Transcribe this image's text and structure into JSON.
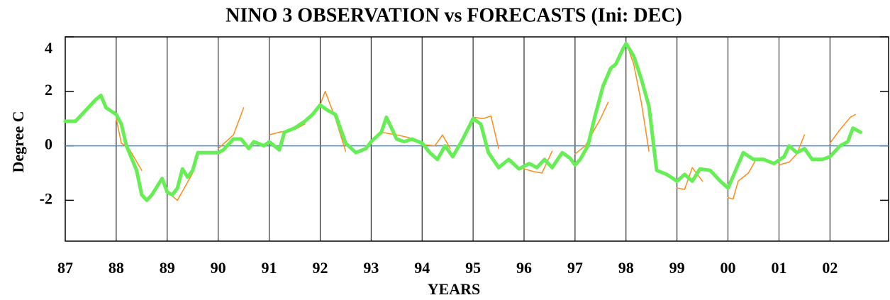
{
  "chart_data": {
    "type": "line",
    "title": "NINO 3 OBSERVATION vs FORECASTS (Ini: DEC)",
    "x_label": "YEARS",
    "y_label": "Degree C",
    "xlim": [
      1987,
      2003.15
    ],
    "ylim": [
      -3.5,
      4
    ],
    "xticks": [
      {
        "value": 1987,
        "label": "87"
      },
      {
        "value": 1988,
        "label": "88"
      },
      {
        "value": 1989,
        "label": "89"
      },
      {
        "value": 1990,
        "label": "90"
      },
      {
        "value": 1991,
        "label": "91"
      },
      {
        "value": 1992,
        "label": "92"
      },
      {
        "value": 1993,
        "label": "93"
      },
      {
        "value": 1994,
        "label": "94"
      },
      {
        "value": 1995,
        "label": "95"
      },
      {
        "value": 1996,
        "label": "96"
      },
      {
        "value": 1997,
        "label": "97"
      },
      {
        "value": 1998,
        "label": "98"
      },
      {
        "value": 1999,
        "label": "99"
      },
      {
        "value": 2000,
        "label": "00"
      },
      {
        "value": 2001,
        "label": "01"
      },
      {
        "value": 2002,
        "label": "02"
      }
    ],
    "yticks": [
      -2,
      0,
      2,
      4
    ],
    "grid": true,
    "baseline": 0,
    "baseline_color": "#3a8ee6",
    "series": [
      {
        "color": "#66ee55",
        "x": [
          1987.0,
          1987.2,
          1987.4,
          1987.6,
          1987.7,
          1987.8,
          1988.0,
          1988.1,
          1988.2,
          1988.4,
          1988.5,
          1988.6,
          1988.7,
          1988.9,
          1989.0,
          1989.1,
          1989.2,
          1989.3,
          1989.4,
          1989.5,
          1989.6,
          1989.8,
          1990.0,
          1990.1,
          1990.3,
          1990.45,
          1990.6,
          1990.7,
          1990.9,
          1991.0,
          1991.2,
          1991.3,
          1991.5,
          1991.7,
          1991.85,
          1992.0,
          1992.15,
          1992.3,
          1992.5,
          1992.7,
          1992.9,
          1993.0,
          1993.2,
          1993.3,
          1993.5,
          1993.65,
          1993.8,
          1994.0,
          1994.15,
          1994.3,
          1994.45,
          1994.6,
          1994.8,
          1995.0,
          1995.15,
          1995.3,
          1995.5,
          1995.7,
          1995.9,
          1996.1,
          1996.25,
          1996.4,
          1996.55,
          1996.75,
          1996.9,
          1997.0,
          1997.1,
          1997.25,
          1997.4,
          1997.55,
          1997.7,
          1997.8,
          1997.95,
          1998.0,
          1998.15,
          1998.3,
          1998.45,
          1998.6,
          1998.8,
          1999.0,
          1999.15,
          1999.3,
          1999.45,
          1999.65,
          1999.85,
          2000.0,
          2000.15,
          2000.3,
          2000.5,
          2000.7,
          2000.9,
          2001.1,
          2001.2,
          2001.35,
          2001.5,
          2001.65,
          2001.85,
          2002.0,
          2002.2,
          2002.35,
          2002.45,
          2002.6
        ],
        "values": [
          0.9,
          0.9,
          1.3,
          1.7,
          1.85,
          1.4,
          1.15,
          0.8,
          0,
          -0.9,
          -1.8,
          -2.0,
          -1.8,
          -1.2,
          -1.7,
          -1.8,
          -1.55,
          -0.85,
          -1.15,
          -0.9,
          -0.25,
          -0.25,
          -0.25,
          -0.15,
          0.25,
          0.25,
          -0.1,
          0.15,
          0,
          0.15,
          -0.15,
          0.5,
          0.65,
          0.9,
          1.15,
          1.5,
          1.3,
          1.15,
          0.1,
          -0.25,
          -0.1,
          0.15,
          0.5,
          1.05,
          0.25,
          0.15,
          0.25,
          0.1,
          -0.25,
          -0.5,
          0,
          -0.4,
          0.25,
          1.0,
          0.8,
          -0.25,
          -0.8,
          -0.5,
          -0.85,
          -0.65,
          -0.8,
          -0.5,
          -0.8,
          -0.25,
          -0.45,
          -0.7,
          -0.5,
          0,
          1.15,
          2.2,
          2.85,
          3.0,
          3.6,
          3.75,
          3.3,
          2.45,
          1.45,
          -0.9,
          -1.05,
          -1.3,
          -1.05,
          -1.3,
          -0.85,
          -0.9,
          -1.3,
          -1.55,
          -0.9,
          -0.25,
          -0.5,
          -0.5,
          -0.65,
          -0.4,
          0,
          -0.25,
          -0.1,
          -0.5,
          -0.5,
          -0.4,
          0,
          0.15,
          0.65,
          0.5
        ]
      },
      {
        "color": "#ff8c1a",
        "x": [
          1988.0,
          1988.1,
          1988.25,
          1988.5
        ],
        "values": [
          1.0,
          0.1,
          -0.1,
          -0.9
        ]
      },
      {
        "color": "#ff8c1a",
        "x": [
          1989.0,
          1989.2,
          1989.5
        ],
        "values": [
          -1.7,
          -2.0,
          -1.0
        ]
      },
      {
        "color": "#ff8c1a",
        "x": [
          1990.0,
          1990.3,
          1990.5
        ],
        "values": [
          -0.1,
          0.4,
          1.4
        ]
      },
      {
        "color": "#ff8c1a",
        "x": [
          1991.0,
          1991.2,
          1991.5,
          1991.7
        ],
        "values": [
          0.4,
          0.5,
          0.6,
          0.8
        ]
      },
      {
        "color": "#ff8c1a",
        "x": [
          1992.0,
          1992.1,
          1992.3,
          1992.5
        ],
        "values": [
          1.5,
          2.0,
          1.0,
          -0.2
        ]
      },
      {
        "color": "#ff8c1a",
        "x": [
          1993.0,
          1993.2,
          1993.5,
          1993.75
        ],
        "values": [
          0.2,
          0.5,
          0.4,
          0.3
        ]
      },
      {
        "color": "#ff8c1a",
        "x": [
          1994.0,
          1994.25,
          1994.4,
          1994.55
        ],
        "values": [
          0.05,
          0,
          0.4,
          -0.1
        ]
      },
      {
        "color": "#ff8c1a",
        "x": [
          1995.0,
          1995.2,
          1995.35,
          1995.5
        ],
        "values": [
          1.05,
          1.0,
          1.1,
          -0.1
        ]
      },
      {
        "color": "#ff8c1a",
        "x": [
          1996.0,
          1996.2,
          1996.35,
          1996.55
        ],
        "values": [
          -0.85,
          -0.95,
          -1.0,
          -0.2
        ]
      },
      {
        "color": "#ff8c1a",
        "x": [
          1997.0,
          1997.2,
          1997.5,
          1997.65
        ],
        "values": [
          -0.3,
          0,
          1.0,
          1.6
        ]
      },
      {
        "color": "#ff8c1a",
        "x": [
          1998.0,
          1998.15,
          1998.3,
          1998.45
        ],
        "values": [
          3.8,
          3.0,
          1.6,
          -0.2
        ]
      },
      {
        "color": "#ff8c1a",
        "x": [
          1999.0,
          1999.15,
          1999.3,
          1999.5
        ],
        "values": [
          -1.55,
          -1.6,
          -0.8,
          -1.3
        ]
      },
      {
        "color": "#ff8c1a",
        "x": [
          2000.0,
          2000.1,
          2000.2,
          2000.4,
          2000.55
        ],
        "values": [
          -1.9,
          -1.95,
          -1.3,
          -1.0,
          -0.5
        ]
      },
      {
        "color": "#ff8c1a",
        "x": [
          2001.0,
          2001.2,
          2001.35,
          2001.5
        ],
        "values": [
          -0.7,
          -0.6,
          -0.3,
          0.4
        ]
      },
      {
        "color": "#ff8c1a",
        "x": [
          2002.0,
          2002.2,
          2002.4,
          2002.5
        ],
        "values": [
          0.1,
          0.6,
          1.05,
          1.15
        ]
      }
    ]
  }
}
